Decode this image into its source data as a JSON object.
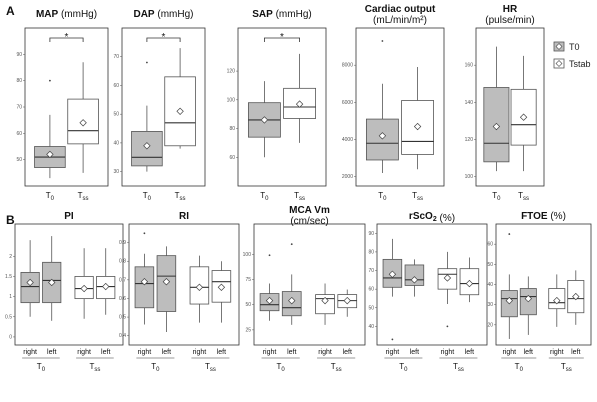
{
  "panel_labels": {
    "a": "A",
    "b": "B"
  },
  "legend": {
    "t0": "T0",
    "tstab": "Tstab"
  },
  "colors": {
    "t0_fill": "#bdbdbd",
    "tstab_fill": "#ffffff",
    "stroke": "#555555"
  },
  "chart_data": [
    {
      "id": "map",
      "type": "box",
      "title": "MAP (mmHg)",
      "title_parts": [
        {
          "t": "MAP",
          "b": true
        },
        {
          "t": " (mmHg)"
        }
      ],
      "ylim": [
        40,
        100
      ],
      "yticks": [
        50,
        60,
        70,
        80,
        90
      ],
      "groups": [
        "T0",
        "Tss"
      ],
      "boxes": [
        {
          "group": "T0",
          "min": 43,
          "q1": 47,
          "median": 51,
          "q3": 55,
          "max": 67,
          "mean": 52,
          "outliers": [
            80
          ]
        },
        {
          "group": "Tss",
          "min": 45,
          "q1": 56,
          "median": 61,
          "q3": 73,
          "max": 87,
          "mean": 64,
          "outliers": []
        }
      ],
      "significance": "*"
    },
    {
      "id": "dap",
      "type": "box",
      "title": "DAP (mmHg)",
      "title_parts": [
        {
          "t": "DAP",
          "b": true
        },
        {
          "t": " (mmHg)"
        }
      ],
      "ylim": [
        25,
        80
      ],
      "yticks": [
        30,
        40,
        50,
        60,
        70
      ],
      "groups": [
        "T0",
        "Tss"
      ],
      "boxes": [
        {
          "group": "T0",
          "min": 30,
          "q1": 32,
          "median": 35,
          "q3": 44,
          "max": 53,
          "mean": 39,
          "outliers": [
            68
          ]
        },
        {
          "group": "Tss",
          "min": 38,
          "q1": 39,
          "median": 47,
          "q3": 63,
          "max": 73,
          "mean": 51,
          "outliers": []
        }
      ],
      "significance": "*"
    },
    {
      "id": "sap",
      "type": "box",
      "title": "SAP (mmHg)",
      "title_parts": [
        {
          "t": "SAP",
          "b": true
        },
        {
          "t": " (mmHg)"
        }
      ],
      "ylim": [
        40,
        150
      ],
      "yticks": [
        60,
        80,
        100,
        120
      ],
      "groups": [
        "T0",
        "Tss"
      ],
      "boxes": [
        {
          "group": "T0",
          "min": 60,
          "q1": 74,
          "median": 86,
          "q3": 98,
          "max": 113,
          "mean": 86,
          "outliers": []
        },
        {
          "group": "Tss",
          "min": 70,
          "q1": 87,
          "median": 95,
          "q3": 108,
          "max": 132,
          "mean": 97,
          "outliers": []
        }
      ],
      "significance": "*"
    },
    {
      "id": "co",
      "type": "box",
      "title": "Cardiac output (mL/min/m²)",
      "title_parts": [
        {
          "t": "Cardiac output",
          "b": true
        }
      ],
      "title_line2": "(mL/min/m²)",
      "ylim": [
        1500,
        10000
      ],
      "yticks": [
        2000,
        4000,
        6000,
        8000
      ],
      "groups": [
        "T0",
        "Tss"
      ],
      "boxes": [
        {
          "group": "T0",
          "min": 2200,
          "q1": 2900,
          "median": 3800,
          "q3": 5100,
          "max": 7000,
          "mean": 4200,
          "outliers": [
            9300
          ]
        },
        {
          "group": "Tss",
          "min": 2400,
          "q1": 3200,
          "median": 3900,
          "q3": 6100,
          "max": 7900,
          "mean": 4700,
          "outliers": []
        }
      ],
      "significance": ""
    },
    {
      "id": "hr",
      "type": "box",
      "title": "HR (pulse/min)",
      "title_parts": [
        {
          "t": "HR",
          "b": true
        }
      ],
      "title_line2": "(pulse/min)",
      "ylim": [
        95,
        180
      ],
      "yticks": [
        100,
        120,
        140,
        160
      ],
      "groups": [
        "T0",
        "Tss"
      ],
      "boxes": [
        {
          "group": "T0",
          "min": 103,
          "q1": 108,
          "median": 118,
          "q3": 148,
          "max": 170,
          "mean": 127,
          "outliers": []
        },
        {
          "group": "Tss",
          "min": 103,
          "q1": 117,
          "median": 128,
          "q3": 147,
          "max": 165,
          "mean": 132,
          "outliers": []
        }
      ],
      "significance": ""
    },
    {
      "id": "pi",
      "type": "box",
      "title": "PI",
      "title_parts": [
        {
          "t": "PI",
          "b": true
        }
      ],
      "ylim": [
        -0.2,
        2.8
      ],
      "yticks": [
        0.0,
        0.5,
        1.0,
        1.5,
        2.0
      ],
      "subgroups": [
        "right",
        "left",
        "right",
        "left"
      ],
      "groups": [
        "T0",
        "Tss"
      ],
      "boxes": [
        {
          "group": "T0",
          "side": "right",
          "min": 0.5,
          "q1": 0.85,
          "median": 1.25,
          "q3": 1.6,
          "max": 2.4,
          "mean": 1.35,
          "outliers": []
        },
        {
          "group": "T0",
          "side": "left",
          "min": 0.4,
          "q1": 0.85,
          "median": 1.4,
          "q3": 1.85,
          "max": 2.5,
          "mean": 1.35,
          "outliers": []
        },
        {
          "group": "Tss",
          "side": "right",
          "min": 0.45,
          "q1": 0.95,
          "median": 1.2,
          "q3": 1.5,
          "max": 2.2,
          "mean": 1.2,
          "outliers": []
        },
        {
          "group": "Tss",
          "side": "left",
          "min": 0.55,
          "q1": 0.95,
          "median": 1.25,
          "q3": 1.5,
          "max": 2.2,
          "mean": 1.25,
          "outliers": []
        }
      ]
    },
    {
      "id": "ri",
      "type": "box",
      "title": "RI",
      "title_parts": [
        {
          "t": "RI",
          "b": true
        }
      ],
      "ylim": [
        0.35,
        1.0
      ],
      "yticks": [
        0.4,
        0.5,
        0.6,
        0.7,
        0.8,
        0.9
      ],
      "subgroups": [
        "right",
        "left",
        "right",
        "left"
      ],
      "groups": [
        "T0",
        "Tss"
      ],
      "boxes": [
        {
          "group": "T0",
          "side": "right",
          "min": 0.46,
          "q1": 0.55,
          "median": 0.68,
          "q3": 0.77,
          "max": 0.84,
          "mean": 0.69,
          "outliers": [
            0.95
          ]
        },
        {
          "group": "T0",
          "side": "left",
          "min": 0.42,
          "q1": 0.53,
          "median": 0.72,
          "q3": 0.83,
          "max": 0.88,
          "mean": 0.69,
          "outliers": []
        },
        {
          "group": "Tss",
          "side": "right",
          "min": 0.47,
          "q1": 0.57,
          "median": 0.66,
          "q3": 0.77,
          "max": 0.83,
          "mean": 0.66,
          "outliers": []
        },
        {
          "group": "Tss",
          "side": "left",
          "min": 0.47,
          "q1": 0.58,
          "median": 0.69,
          "q3": 0.75,
          "max": 0.8,
          "mean": 0.66,
          "outliers": []
        }
      ]
    },
    {
      "id": "mca",
      "type": "box",
      "title": "MCA Vm (cm/sec)",
      "title_parts": [
        {
          "t": "MCA Vm",
          "b": true
        }
      ],
      "title_line2": "(cm/sec)",
      "ylim": [
        10,
        130
      ],
      "yticks": [
        25,
        50,
        75,
        100
      ],
      "subgroups": [
        "right",
        "left",
        "right",
        "left"
      ],
      "groups": [
        "T0",
        "Tss"
      ],
      "boxes": [
        {
          "group": "T0",
          "side": "right",
          "min": 34,
          "q1": 44,
          "median": 50,
          "q3": 61,
          "max": 71,
          "mean": 54,
          "outliers": [
            99
          ]
        },
        {
          "group": "T0",
          "side": "left",
          "min": 30,
          "q1": 39,
          "median": 47,
          "q3": 63,
          "max": 80,
          "mean": 54,
          "outliers": [
            110
          ]
        },
        {
          "group": "Tss",
          "side": "right",
          "min": 30,
          "q1": 41,
          "median": 56,
          "q3": 60,
          "max": 71,
          "mean": 54,
          "outliers": []
        },
        {
          "group": "Tss",
          "side": "left",
          "min": 38,
          "q1": 47,
          "median": 54,
          "q3": 60,
          "max": 65,
          "mean": 54,
          "outliers": []
        }
      ]
    },
    {
      "id": "rsco2",
      "type": "box",
      "title": "rScO2 (%)",
      "title_parts": [
        {
          "t": "rScO",
          "b": true
        },
        {
          "t": "2",
          "sub": true,
          "b": true
        },
        {
          "t": " (%)"
        }
      ],
      "ylim": [
        30,
        95
      ],
      "yticks": [
        40,
        50,
        60,
        70,
        80,
        90
      ],
      "subgroups": [
        "right",
        "left",
        "right",
        "left"
      ],
      "groups": [
        "T0",
        "Tss"
      ],
      "boxes": [
        {
          "group": "T0",
          "side": "right",
          "min": 56,
          "q1": 61,
          "median": 66,
          "q3": 76,
          "max": 87,
          "mean": 68,
          "outliers": [
            33
          ]
        },
        {
          "group": "T0",
          "side": "left",
          "min": 56,
          "q1": 62,
          "median": 65,
          "q3": 73,
          "max": 76,
          "mean": 65,
          "outliers": []
        },
        {
          "group": "Tss",
          "side": "right",
          "min": 52,
          "q1": 60,
          "median": 68,
          "q3": 71,
          "max": 80,
          "mean": 66,
          "outliers": [
            40
          ]
        },
        {
          "group": "Tss",
          "side": "left",
          "min": 53,
          "q1": 57,
          "median": 63,
          "q3": 71,
          "max": 77,
          "mean": 63,
          "outliers": []
        }
      ]
    },
    {
      "id": "ftoe",
      "type": "box",
      "title": "FTOE (%)",
      "title_parts": [
        {
          "t": "FTOE",
          "b": true
        },
        {
          "t": " (%)"
        }
      ],
      "ylim": [
        10,
        70
      ],
      "yticks": [
        20,
        30,
        40,
        50,
        60
      ],
      "subgroups": [
        "right",
        "left",
        "right",
        "left"
      ],
      "groups": [
        "T0",
        "Tss"
      ],
      "boxes": [
        {
          "group": "T0",
          "side": "right",
          "min": 13,
          "q1": 24,
          "median": 33,
          "q3": 37,
          "max": 45,
          "mean": 32,
          "outliers": [
            65
          ]
        },
        {
          "group": "T0",
          "side": "left",
          "min": 15,
          "q1": 25,
          "median": 34,
          "q3": 38,
          "max": 44,
          "mean": 33,
          "outliers": []
        },
        {
          "group": "Tss",
          "side": "right",
          "min": 19,
          "q1": 28,
          "median": 31,
          "q3": 38,
          "max": 45,
          "mean": 32,
          "outliers": []
        },
        {
          "group": "Tss",
          "side": "left",
          "min": 20,
          "q1": 26,
          "median": 33,
          "q3": 42,
          "max": 47,
          "mean": 34,
          "outliers": []
        }
      ]
    }
  ]
}
